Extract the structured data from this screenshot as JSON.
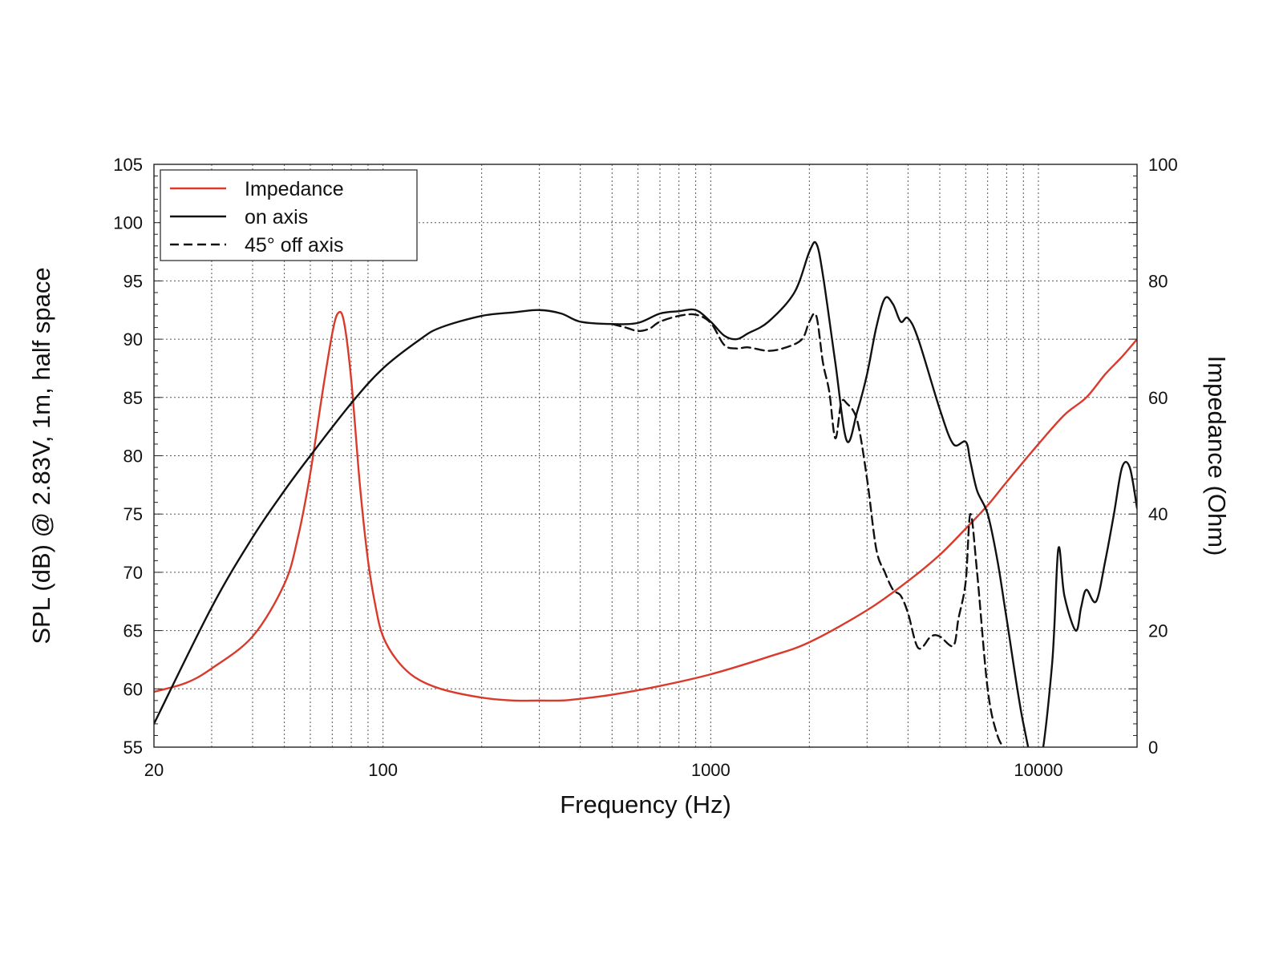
{
  "chart_data": {
    "type": "line",
    "xlabel": "Frequency (Hz)",
    "ylabel": "SPL (dB) @ 2.83V, 1m, half space",
    "y2label": "Impedance (Ohm)",
    "xscale": "log",
    "xlim": [
      20,
      20000
    ],
    "ylim": [
      55,
      105
    ],
    "y2lim": [
      0,
      100
    ],
    "grid": true,
    "legend_position": "top-left",
    "x_tick_labels": [
      "20",
      "100",
      "1000",
      "10000"
    ],
    "x_ticks": [
      20,
      100,
      1000,
      10000
    ],
    "y_ticks": [
      55,
      60,
      65,
      70,
      75,
      80,
      85,
      90,
      95,
      100,
      105
    ],
    "y_tick_labels": [
      "55",
      "60",
      "65",
      "70",
      "75",
      "80",
      "85",
      "90",
      "95",
      "100",
      "105"
    ],
    "y2_ticks": [
      0,
      20,
      40,
      60,
      80,
      100
    ],
    "y2_tick_labels": [
      "0",
      "20",
      "40",
      "60",
      "80",
      "100"
    ],
    "series": [
      {
        "name": "Impedance",
        "axis": "right",
        "color": "#d93a2b",
        "dash": "solid",
        "x": [
          20,
          25,
          30,
          40,
          50,
          55,
          60,
          65,
          70,
          73,
          76,
          80,
          85,
          90,
          95,
          100,
          110,
          125,
          150,
          200,
          250,
          300,
          350,
          400,
          500,
          700,
          1000,
          1500,
          2000,
          3000,
          4000,
          5000,
          6000,
          7000,
          8000,
          10000,
          12000,
          14000,
          16000,
          18000,
          20000
        ],
        "values": [
          9.5,
          11,
          13.5,
          19,
          28,
          36,
          47,
          60,
          71,
          74.5,
          73,
          63,
          45,
          32,
          24,
          19,
          15,
          12,
          10,
          8.5,
          8,
          8,
          8,
          8.3,
          9,
          10.5,
          12.5,
          15.5,
          18,
          23.5,
          28.5,
          33,
          37.5,
          41.5,
          45.5,
          52,
          57,
          60,
          64,
          67,
          70
        ]
      },
      {
        "name": "on axis",
        "axis": "left",
        "color": "#111111",
        "dash": "solid",
        "x": [
          20,
          30,
          40,
          50,
          60,
          80,
          100,
          130,
          150,
          200,
          250,
          300,
          350,
          400,
          500,
          600,
          700,
          800,
          900,
          1000,
          1100,
          1200,
          1300,
          1500,
          1800,
          2000,
          2100,
          2200,
          2400,
          2600,
          2800,
          3000,
          3200,
          3400,
          3600,
          3800,
          4000,
          4300,
          5000,
          5500,
          6000,
          6200,
          6500,
          7000,
          7500,
          8000,
          9000,
          10000,
          11000,
          11500,
          12000,
          13000,
          13500,
          14000,
          15000,
          16000,
          17000,
          18000,
          19000,
          20000
        ],
        "values": [
          57,
          67,
          73,
          77,
          80,
          84.5,
          87.5,
          90,
          91,
          92,
          92.3,
          92.5,
          92.2,
          91.5,
          91.3,
          91.4,
          92.2,
          92.4,
          92.5,
          91.5,
          90.3,
          90,
          90.5,
          91.5,
          94,
          97.5,
          98.2,
          95.5,
          88,
          81.3,
          83.8,
          87,
          91,
          93.5,
          93,
          91.5,
          91.8,
          90,
          84,
          81,
          81.2,
          79.5,
          77,
          75,
          71,
          66,
          57,
          53,
          62,
          72,
          68,
          65,
          67,
          68.5,
          67.5,
          71,
          75,
          79,
          79,
          75.5
        ]
      },
      {
        "name": "45° off axis",
        "axis": "left",
        "color": "#111111",
        "dash": "dashed",
        "x": [
          500,
          550,
          600,
          650,
          700,
          800,
          900,
          1000,
          1100,
          1200,
          1300,
          1500,
          1700,
          1900,
          2000,
          2100,
          2200,
          2300,
          2400,
          2500,
          2600,
          2800,
          3000,
          3200,
          3400,
          3600,
          3800,
          4000,
          4300,
          4700,
          5000,
          5500,
          5700,
          6000,
          6200,
          6500,
          7000,
          7500,
          8000
        ],
        "values": [
          91.3,
          91,
          90.7,
          90.9,
          91.5,
          92,
          92.1,
          91.4,
          89.5,
          89.2,
          89.3,
          89,
          89.3,
          90,
          91.5,
          92,
          88,
          85.5,
          81.5,
          84.5,
          84.5,
          83,
          78,
          72,
          70,
          68.5,
          68,
          66.5,
          63.5,
          64.5,
          64.5,
          63.7,
          66,
          69.2,
          75,
          70,
          60,
          56,
          54.7
        ]
      }
    ]
  }
}
